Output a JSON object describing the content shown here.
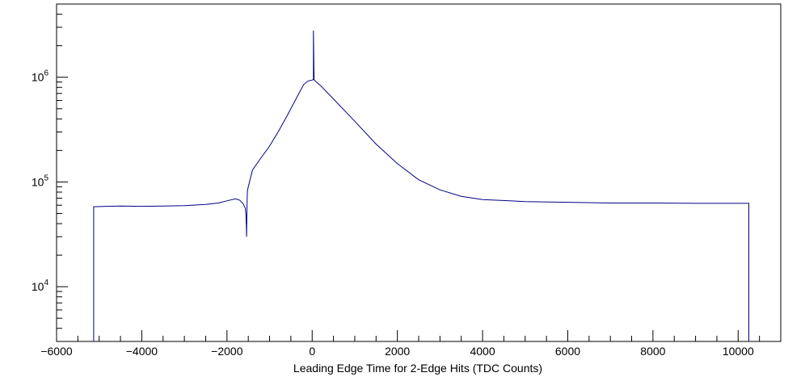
{
  "chart_data": {
    "type": "line",
    "title": "",
    "xlabel": "Leading Edge Time for 2-Edge Hits (TDC Counts)",
    "ylabel": "",
    "xlim": [
      -6000,
      11000
    ],
    "ylim": [
      3000,
      5000000
    ],
    "yscale": "log",
    "grid": false,
    "legend": "none",
    "line_color": "#000080",
    "x_ticks": [
      -6000,
      -4000,
      -2000,
      0,
      2000,
      4000,
      6000,
      8000,
      10000
    ],
    "x_tick_labels": [
      "−6000",
      "−4000",
      "−2000",
      "0",
      "2000",
      "4000",
      "6000",
      "8000",
      "10000"
    ],
    "y_ticks": [
      {
        "value": 10000,
        "base": "10",
        "exp": "4"
      },
      {
        "value": 100000,
        "base": "10",
        "exp": "5"
      },
      {
        "value": 1000000,
        "base": "10",
        "exp": "6"
      }
    ],
    "series": [
      {
        "name": "",
        "x": [
          -5130,
          -5130,
          -4500,
          -4000,
          -3500,
          -3000,
          -2500,
          -2200,
          -2000,
          -1800,
          -1700,
          -1620,
          -1570,
          -1555,
          -1545,
          -1540,
          -1530,
          -1520,
          -1500,
          -1400,
          -1200,
          -1000,
          -800,
          -600,
          -400,
          -200,
          -100,
          0,
          30,
          30,
          45,
          50,
          100,
          200,
          500,
          1000,
          1500,
          2000,
          2500,
          3000,
          3500,
          4000,
          5000,
          6000,
          7000,
          8000,
          9000,
          10000,
          10250,
          10250
        ],
        "y": [
          3000,
          58000,
          59000,
          58500,
          59000,
          59500,
          61000,
          63000,
          66000,
          69000,
          67000,
          62000,
          56000,
          48000,
          38000,
          30000,
          58000,
          82000,
          90000,
          130000,
          170000,
          220000,
          300000,
          420000,
          600000,
          850000,
          920000,
          940000,
          950000,
          2800000,
          950000,
          940000,
          900000,
          830000,
          620000,
          380000,
          230000,
          150000,
          105000,
          84000,
          73000,
          68000,
          65000,
          64000,
          63000,
          63000,
          62500,
          62500,
          62500,
          3000
        ]
      }
    ]
  }
}
